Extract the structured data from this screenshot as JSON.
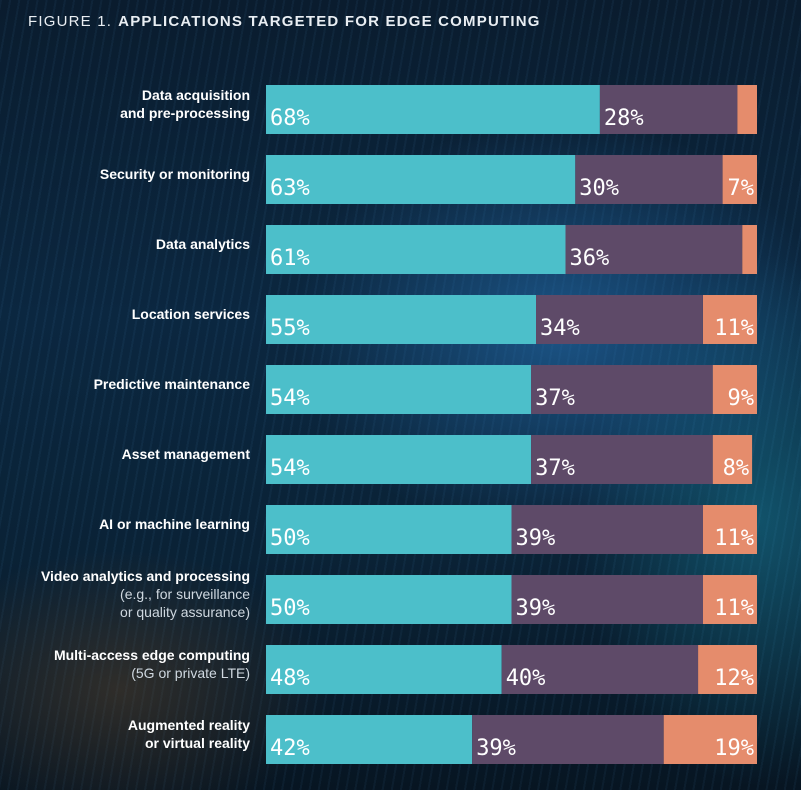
{
  "figure": {
    "number": "FIGURE 1.",
    "title": "APPLICATIONS TARGETED FOR EDGE COMPUTING"
  },
  "colors": {
    "segment_1": "#4cbfca",
    "segment_2": "#5e4a68",
    "segment_3": "#e58c6c",
    "label_text": "#ffffff"
  },
  "chart_data": {
    "type": "bar",
    "orientation": "horizontal",
    "stacked": true,
    "xlim": [
      0,
      100
    ],
    "categories": [
      {
        "label": "Data acquisition\nand pre-processing",
        "sublabel": ""
      },
      {
        "label": "Security or monitoring",
        "sublabel": ""
      },
      {
        "label": "Data analytics",
        "sublabel": ""
      },
      {
        "label": "Location services",
        "sublabel": ""
      },
      {
        "label": "Predictive maintenance",
        "sublabel": ""
      },
      {
        "label": "Asset management",
        "sublabel": ""
      },
      {
        "label": "AI or machine learning",
        "sublabel": ""
      },
      {
        "label": "Video analytics and processing",
        "sublabel": "(e.g., for surveillance\nor quality assurance)"
      },
      {
        "label": "Multi-access edge computing",
        "sublabel": "(5G or private LTE)"
      },
      {
        "label": "Augmented reality\nor virtual reality",
        "sublabel": ""
      }
    ],
    "series": [
      {
        "values": [
          68,
          63,
          61,
          55,
          54,
          54,
          50,
          50,
          48,
          42
        ],
        "labels": [
          "68%",
          "63%",
          "61%",
          "55%",
          "54%",
          "54%",
          "50%",
          "50%",
          "48%",
          "42%"
        ]
      },
      {
        "values": [
          28,
          30,
          36,
          34,
          37,
          37,
          39,
          39,
          40,
          39
        ],
        "labels": [
          "28%",
          "30%",
          "36%",
          "34%",
          "37%",
          "37%",
          "39%",
          "39%",
          "40%",
          "39%"
        ]
      },
      {
        "values": [
          4,
          7,
          3,
          11,
          9,
          8,
          11,
          11,
          12,
          19
        ],
        "labels": [
          "",
          "7%",
          "",
          "11%",
          "9%",
          "8%",
          "11%",
          "11%",
          "12%",
          "19%"
        ]
      }
    ]
  }
}
